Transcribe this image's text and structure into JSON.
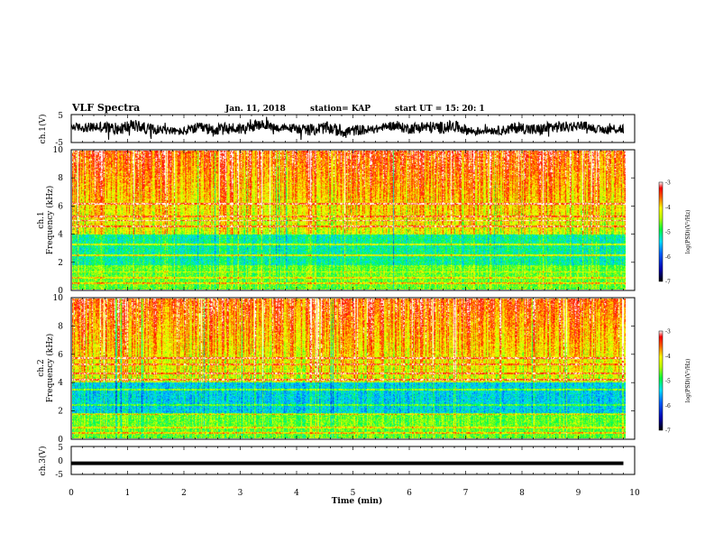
{
  "header": {
    "title": "VLF Spectra",
    "date": "Jan. 11, 2018",
    "station": "station= KAP",
    "start": "start UT =  15: 20: 1"
  },
  "chart_data": [
    {
      "id": "ch1-waveform",
      "type": "line",
      "ylabel": "ch.1(V)",
      "ylim": [
        -5,
        5
      ],
      "yticks": [
        "5",
        "-5"
      ],
      "xlim": [
        0,
        10
      ],
      "description_values": "oscillating trace mostly between -2 and +2 V, spanning 0 to ~9.8 min"
    },
    {
      "id": "ch1-spectrogram",
      "type": "heatmap",
      "ylabel": "ch.1\nFrequency (kHz)",
      "ylabel_line1": "ch.1",
      "ylabel_line2": "Frequency (kHz)",
      "ylim": [
        0,
        10
      ],
      "yticks": [
        "0",
        "2",
        "4",
        "6",
        "8",
        "10"
      ],
      "xlim": [
        0,
        10
      ],
      "colorbar": {
        "label": "log(PSD)(V²/Hz)",
        "range": [
          -7,
          -3
        ],
        "ticks": [
          "-3",
          "-4",
          "-5",
          "-6",
          "-7"
        ]
      }
    },
    {
      "id": "ch2-spectrogram",
      "type": "heatmap",
      "ylabel_line1": "ch.2",
      "ylabel_line2": "Frequency (kHz)",
      "ylim": [
        0,
        10
      ],
      "yticks": [
        "0",
        "2",
        "4",
        "6",
        "8",
        "10"
      ],
      "xlim": [
        0,
        10
      ],
      "colorbar": {
        "label": "log(PSD)(V²/Hz)",
        "range": [
          -7,
          -3
        ],
        "ticks": [
          "-3",
          "-4",
          "-5",
          "-6",
          "-7"
        ]
      }
    },
    {
      "id": "ch3-waveform",
      "type": "line",
      "ylabel": "ch.3(V)",
      "ylim": [
        -5,
        5
      ],
      "yticks": [
        "5",
        "0",
        "-5"
      ],
      "xlim": [
        0,
        10
      ],
      "description_values": "flat thick line near -1 V spanning 0 to ~9.8 min"
    }
  ],
  "xaxis": {
    "label": "Time (min)",
    "ticks": [
      "0",
      "1",
      "2",
      "3",
      "4",
      "5",
      "6",
      "7",
      "8",
      "9",
      "10"
    ]
  }
}
